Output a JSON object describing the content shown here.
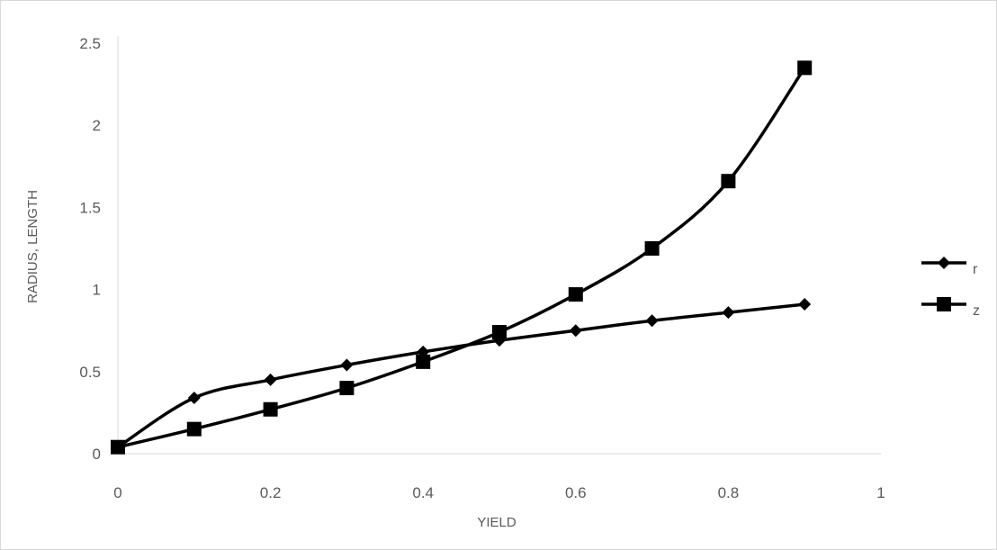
{
  "chart_data": {
    "type": "line",
    "title": "",
    "xlabel": "YIELD",
    "ylabel": "RADIUS, LENGTH",
    "xlim": [
      0,
      1
    ],
    "ylim": [
      0,
      2.5
    ],
    "x_ticks": [
      "0",
      "0.2",
      "0.4",
      "0.6",
      "0.8",
      "1"
    ],
    "y_ticks": [
      "0",
      "0.5",
      "1",
      "1.5",
      "2",
      "2.5"
    ],
    "x": [
      0,
      0.1,
      0.2,
      0.3,
      0.4,
      0.5,
      0.6,
      0.7,
      0.8,
      0.9
    ],
    "series": [
      {
        "name": "r",
        "marker": "diamond",
        "values": [
          0.04,
          0.34,
          0.45,
          0.54,
          0.62,
          0.69,
          0.75,
          0.81,
          0.86,
          0.91
        ]
      },
      {
        "name": "z",
        "marker": "square",
        "values": [
          0.04,
          0.15,
          0.27,
          0.4,
          0.56,
          0.74,
          0.97,
          1.25,
          1.66,
          2.35
        ]
      }
    ],
    "grid": false,
    "legend_position": "right",
    "colors": {
      "line": "#000000",
      "axis": "#d9d9d9",
      "text": "#595959"
    }
  }
}
